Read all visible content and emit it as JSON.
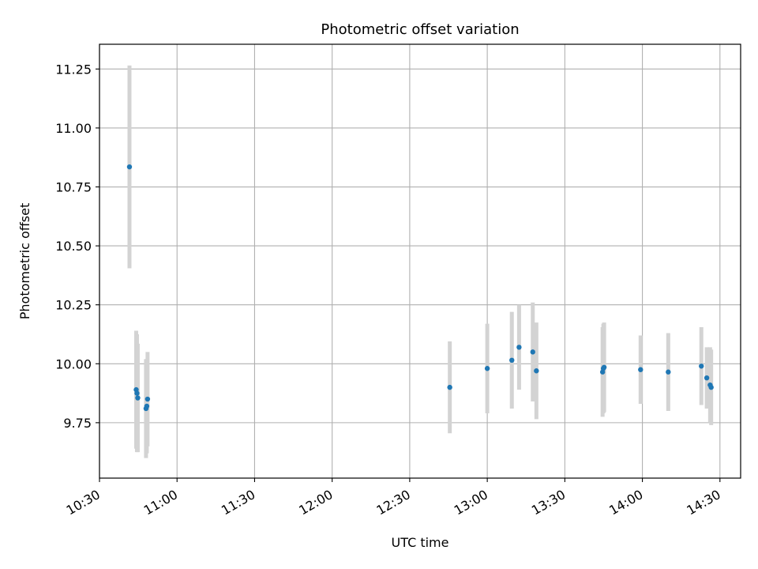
{
  "chart_data": {
    "type": "scatter",
    "title": "Photometric offset variation",
    "xlabel": "UTC time",
    "ylabel": "Photometric offset",
    "grid": true,
    "xlim_minutes": [
      630,
      878
    ],
    "ylim": [
      9.515,
      11.355
    ],
    "x_ticks": [
      {
        "minutes": 630,
        "label": "10:30"
      },
      {
        "minutes": 660,
        "label": "11:00"
      },
      {
        "minutes": 690,
        "label": "11:30"
      },
      {
        "minutes": 720,
        "label": "12:00"
      },
      {
        "minutes": 750,
        "label": "12:30"
      },
      {
        "minutes": 780,
        "label": "13:00"
      },
      {
        "minutes": 810,
        "label": "13:30"
      },
      {
        "minutes": 840,
        "label": "14:00"
      },
      {
        "minutes": 870,
        "label": "14:30"
      }
    ],
    "y_ticks": [
      {
        "value": 9.75,
        "label": "9.75"
      },
      {
        "value": 10.0,
        "label": "10.00"
      },
      {
        "value": 10.25,
        "label": "10.25"
      },
      {
        "value": 10.5,
        "label": "10.50"
      },
      {
        "value": 10.75,
        "label": "10.75"
      },
      {
        "value": 11.0,
        "label": "11.00"
      },
      {
        "value": 11.25,
        "label": "11.25"
      }
    ],
    "marker_color": "#1f77b4",
    "errorbar_color": "#d3d3d3",
    "points": [
      {
        "t": 641.6,
        "y": 10.835,
        "err": 0.43
      },
      {
        "t": 644.2,
        "y": 9.89,
        "err": 0.25
      },
      {
        "t": 644.5,
        "y": 9.875,
        "err": 0.25
      },
      {
        "t": 644.8,
        "y": 9.855,
        "err": 0.23
      },
      {
        "t": 648.0,
        "y": 9.81,
        "err": 0.21
      },
      {
        "t": 648.3,
        "y": 9.82,
        "err": 0.2
      },
      {
        "t": 648.6,
        "y": 9.85,
        "err": 0.2
      },
      {
        "t": 765.5,
        "y": 9.9,
        "err": 0.195
      },
      {
        "t": 780.0,
        "y": 9.98,
        "err": 0.19
      },
      {
        "t": 789.5,
        "y": 10.015,
        "err": 0.205
      },
      {
        "t": 792.3,
        "y": 10.07,
        "err": 0.18
      },
      {
        "t": 797.6,
        "y": 10.05,
        "err": 0.21
      },
      {
        "t": 799.0,
        "y": 9.97,
        "err": 0.205
      },
      {
        "t": 824.6,
        "y": 9.965,
        "err": 0.19
      },
      {
        "t": 824.9,
        "y": 9.98,
        "err": 0.19
      },
      {
        "t": 825.2,
        "y": 9.985,
        "err": 0.19
      },
      {
        "t": 839.3,
        "y": 9.975,
        "err": 0.145
      },
      {
        "t": 850.0,
        "y": 9.965,
        "err": 0.165
      },
      {
        "t": 862.8,
        "y": 9.99,
        "err": 0.165
      },
      {
        "t": 864.9,
        "y": 9.94,
        "err": 0.13
      },
      {
        "t": 866.2,
        "y": 9.91,
        "err": 0.16
      },
      {
        "t": 866.6,
        "y": 9.9,
        "err": 0.16
      }
    ]
  }
}
